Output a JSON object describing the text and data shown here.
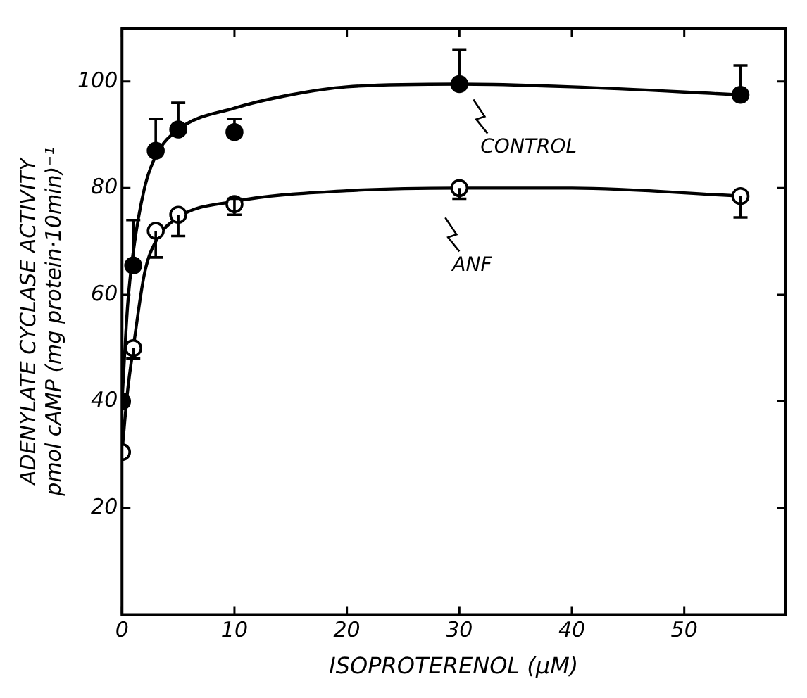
{
  "chart_data": {
    "type": "scatter",
    "xlabel": "ISOPROTERENOL (μM)",
    "ylabel": "ADENYLATE CYCLASE ACTIVITY\npmol cAMP (mg protein·10min)⁻¹",
    "xlim": [
      0,
      59
    ],
    "xticks": [
      0,
      10,
      20,
      30,
      40,
      50
    ],
    "ylim": [
      0,
      110
    ],
    "yticks": [
      20,
      40,
      60,
      80,
      100
    ],
    "grid": false,
    "legend": "top right",
    "marker": "circle",
    "series": [
      {
        "type": "line",
        "name": "CONTROL",
        "color": "#000000",
        "marker": "none",
        "x": [
          0,
          0.5,
          1,
          2,
          3,
          5,
          10,
          15,
          20,
          30,
          40,
          55
        ],
        "values": [
          40,
          58,
          68,
          80,
          86,
          91,
          95,
          97.5,
          99,
          99.5,
          99,
          97.5
        ]
      },
      {
        "type": "line",
        "name": "ANF",
        "color": "#000000",
        "marker": "none",
        "x": [
          0,
          0.5,
          1,
          2,
          3,
          5,
          10,
          20,
          30,
          40,
          55
        ],
        "values": [
          30.5,
          42,
          50,
          64,
          70,
          74.5,
          77.5,
          79.5,
          80,
          80,
          78.5
        ]
      },
      {
        "type": "scatter",
        "color": "#000000",
        "x": [
          0,
          1,
          3,
          5,
          10,
          30,
          55
        ],
        "values": [
          40,
          65.5,
          87,
          91,
          90.5,
          99.5,
          97.5
        ],
        "errors": [
          null,
          [
            65.5,
            74
          ],
          [
            87,
            93
          ],
          [
            91,
            96
          ],
          [
            90.5,
            93
          ],
          [
            99.5,
            106
          ],
          [
            97.5,
            103
          ]
        ]
      },
      {
        "type": "scatter",
        "color": "#ffffff",
        "x": [
          0,
          1,
          3,
          5,
          10,
          30,
          55
        ],
        "values": [
          30.5,
          50,
          72,
          75,
          77,
          80,
          78.5
        ],
        "errors": [
          null,
          [
            48,
            50
          ],
          [
            67,
            72
          ],
          [
            71,
            75
          ],
          [
            75,
            78
          ],
          [
            78,
            80
          ],
          [
            74.5,
            78.5
          ]
        ]
      }
    ]
  }
}
